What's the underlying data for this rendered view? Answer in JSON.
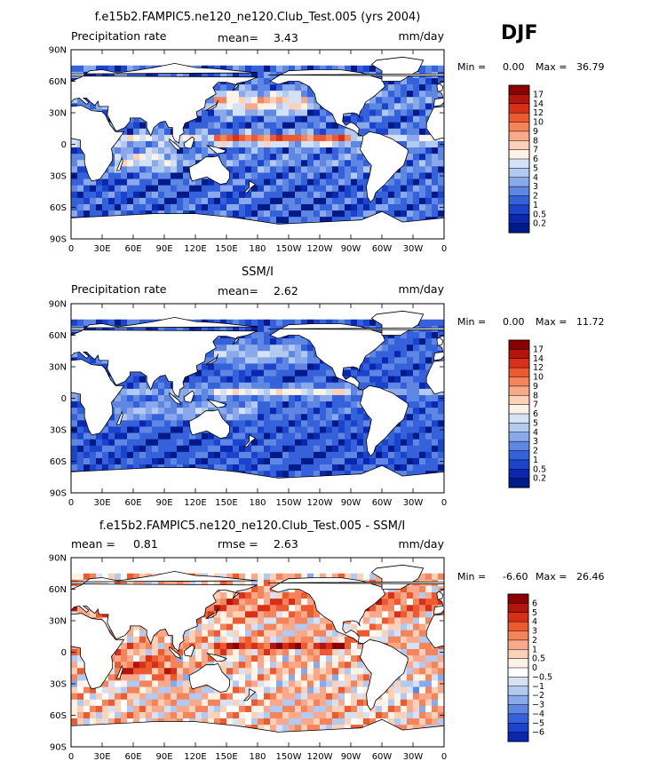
{
  "season": "DJF",
  "chart_data": [
    {
      "type": "heatmap",
      "title": "f.e15b2.FAMPIC5.ne120_ne120.Club_Test.005 (yrs 2004)",
      "left_label": "Precipitation rate",
      "center_label": "mean=",
      "center_value": "3.43",
      "right_label": "mm/day",
      "min_label": "Min =",
      "min_value": "0.00",
      "max_label": "Max =",
      "max_value": "36.79",
      "lat_ticks": [
        "90N",
        "60N",
        "30N",
        "0",
        "30S",
        "60S",
        "90S"
      ],
      "lon_ticks": [
        "0",
        "30E",
        "60E",
        "90E",
        "120E",
        "150E",
        "180",
        "150W",
        "120W",
        "90W",
        "60W",
        "30W",
        "0"
      ],
      "ylim": [
        -90,
        90
      ],
      "xlim": [
        0,
        360
      ],
      "colorbar_levels": [
        "17",
        "14",
        "12",
        "10",
        "9",
        "8",
        "7",
        "6",
        "5",
        "4",
        "3",
        "2",
        "1",
        "0.5",
        "0.2"
      ],
      "colorbar_colors": [
        "#8b0000",
        "#b3150d",
        "#d83018",
        "#ee5a30",
        "#f5845a",
        "#f9a98a",
        "#fdd0b8",
        "#fdf2e6",
        "#d5e2f5",
        "#b2c9f0",
        "#8aa9ea",
        "#5e86e3",
        "#3562db",
        "#1b44cc",
        "#0a27b0",
        "#001a8a"
      ],
      "field": "model"
    },
    {
      "type": "heatmap",
      "title": "SSM/I",
      "left_label": "Precipitation rate",
      "center_label": "mean=",
      "center_value": "2.62",
      "right_label": "mm/day",
      "min_label": "Min =",
      "min_value": "0.00",
      "max_label": "Max =",
      "max_value": "11.72",
      "lat_ticks": [
        "90N",
        "60N",
        "30N",
        "0",
        "30S",
        "60S",
        "90S"
      ],
      "lon_ticks": [
        "0",
        "30E",
        "60E",
        "90E",
        "120E",
        "150E",
        "180",
        "150W",
        "120W",
        "90W",
        "60W",
        "30W",
        "0"
      ],
      "ylim": [
        -90,
        90
      ],
      "xlim": [
        0,
        360
      ],
      "colorbar_levels": [
        "17",
        "14",
        "12",
        "10",
        "9",
        "8",
        "7",
        "6",
        "5",
        "4",
        "3",
        "2",
        "1",
        "0.5",
        "0.2"
      ],
      "colorbar_colors": [
        "#8b0000",
        "#b3150d",
        "#d83018",
        "#ee5a30",
        "#f5845a",
        "#f9a98a",
        "#fdd0b8",
        "#fdf2e6",
        "#d5e2f5",
        "#b2c9f0",
        "#8aa9ea",
        "#5e86e3",
        "#3562db",
        "#1b44cc",
        "#0a27b0",
        "#001a8a"
      ],
      "field": "obs"
    },
    {
      "type": "heatmap",
      "title": "f.e15b2.FAMPIC5.ne120_ne120.Club_Test.005 - SSM/I",
      "left_label": "mean =",
      "left_value": "0.81",
      "center_label": "rmse =",
      "center_value": "2.63",
      "right_label": "mm/day",
      "min_label": "Min =",
      "min_value": "-6.60",
      "max_label": "Max =",
      "max_value": "26.46",
      "lat_ticks": [
        "90N",
        "60N",
        "30N",
        "0",
        "30S",
        "60S",
        "90S"
      ],
      "lon_ticks": [
        "0",
        "30E",
        "60E",
        "90E",
        "120E",
        "150E",
        "180",
        "150W",
        "120W",
        "90W",
        "60W",
        "30W",
        "0"
      ],
      "ylim": [
        -90,
        90
      ],
      "xlim": [
        0,
        360
      ],
      "colorbar_levels": [
        "6",
        "5",
        "4",
        "3",
        "2",
        "1",
        "0.5",
        "0",
        "−0.5",
        "−1",
        "−2",
        "−3",
        "−4",
        "−5",
        "−6"
      ],
      "colorbar_colors": [
        "#8b0000",
        "#b3150d",
        "#d83018",
        "#ee5a30",
        "#f5845a",
        "#f9a98a",
        "#fdd0b8",
        "#fdf2e6",
        "#ffffff",
        "#d5e2f5",
        "#b2c9f0",
        "#8aa9ea",
        "#5e86e3",
        "#3562db",
        "#1b44cc",
        "#0a27b0"
      ],
      "field": "diff"
    }
  ]
}
